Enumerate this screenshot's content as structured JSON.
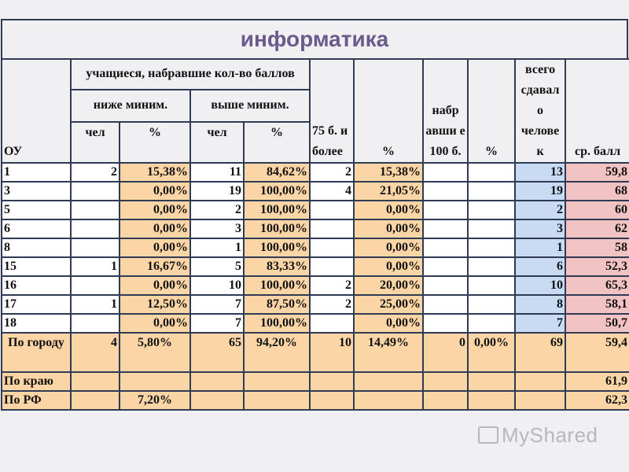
{
  "title": "информатика",
  "headers": {
    "ou": "ОУ",
    "group": "учащиеся, набравшие кол-во баллов",
    "below": "ниже миним.",
    "above": "выше миним.",
    "chel1": "чел",
    "pct1": "%",
    "chel2": "чел",
    "pct2": "%",
    "b75": "75 б. и более",
    "pct75": "%",
    "b100": "набр авши е 100 б.",
    "pct100": "%",
    "total": "всего сдавал о челове к",
    "avg": "ср. балл"
  },
  "rows": [
    {
      "ou": "1",
      "chel1": "2",
      "pct1": "15,38%",
      "chel2": "11",
      "pct2": "84,62%",
      "b75": "2",
      "pct75": "15,38%",
      "b100": "",
      "pct100": "",
      "total": "13",
      "avg": "59,8"
    },
    {
      "ou": "3",
      "chel1": "",
      "pct1": "0,00%",
      "chel2": "19",
      "pct2": "100,00%",
      "b75": "4",
      "pct75": "21,05%",
      "b100": "",
      "pct100": "",
      "total": "19",
      "avg": "68"
    },
    {
      "ou": "5",
      "chel1": "",
      "pct1": "0,00%",
      "chel2": "2",
      "pct2": "100,00%",
      "b75": "",
      "pct75": "0,00%",
      "b100": "",
      "pct100": "",
      "total": "2",
      "avg": "60"
    },
    {
      "ou": "6",
      "chel1": "",
      "pct1": "0,00%",
      "chel2": "3",
      "pct2": "100,00%",
      "b75": "",
      "pct75": "0,00%",
      "b100": "",
      "pct100": "",
      "total": "3",
      "avg": "62"
    },
    {
      "ou": "8",
      "chel1": "",
      "pct1": "0,00%",
      "chel2": "1",
      "pct2": "100,00%",
      "b75": "",
      "pct75": "0,00%",
      "b100": "",
      "pct100": "",
      "total": "1",
      "avg": "58"
    },
    {
      "ou": "15",
      "chel1": "1",
      "pct1": "16,67%",
      "chel2": "5",
      "pct2": "83,33%",
      "b75": "",
      "pct75": "0,00%",
      "b100": "",
      "pct100": "",
      "total": "6",
      "avg": "52,3"
    },
    {
      "ou": "16",
      "chel1": "",
      "pct1": "0,00%",
      "chel2": "10",
      "pct2": "100,00%",
      "b75": "2",
      "pct75": "20,00%",
      "b100": "",
      "pct100": "",
      "total": "10",
      "avg": "65,3"
    },
    {
      "ou": "17",
      "chel1": "1",
      "pct1": "12,50%",
      "chel2": "7",
      "pct2": "87,50%",
      "b75": "2",
      "pct75": "25,00%",
      "b100": "",
      "pct100": "",
      "total": "8",
      "avg": "58,1"
    },
    {
      "ou": "18",
      "chel1": "",
      "pct1": "0,00%",
      "chel2": "7",
      "pct2": "100,00%",
      "b75": "",
      "pct75": "0,00%",
      "b100": "",
      "pct100": "",
      "total": "7",
      "avg": "50,7"
    }
  ],
  "city": {
    "ou": "По городу",
    "chel1": "4",
    "pct1": "5,80%",
    "chel2": "65",
    "pct2": "94,20%",
    "b75": "10",
    "pct75": "14,49%",
    "b100": "0",
    "pct100": "0,00%",
    "total": "69",
    "avg": "59,4"
  },
  "region": {
    "ou": "По краю",
    "avg": "61,9"
  },
  "rf": {
    "ou": "По РФ",
    "pct1": "7,20%",
    "avg": "62,3"
  },
  "watermark": "MyShared",
  "colors": {
    "border": "#2f3b55",
    "title": "#6b5a8c",
    "orange": "#fbd5a6",
    "blue": "#c9daf3",
    "pink": "#f2c3c3"
  }
}
